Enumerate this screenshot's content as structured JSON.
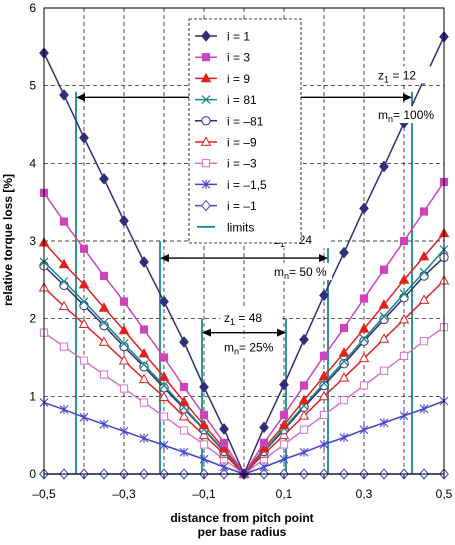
{
  "chart_data": {
    "type": "line",
    "ylabel": "relative torque loss [%]",
    "xlabel_line1": "distance from pitch point",
    "xlabel_line2": "per base radius",
    "xlim": [
      -0.5,
      0.5
    ],
    "ylim": [
      0,
      6
    ],
    "grid": true,
    "legend_position": "top-center",
    "x_ticks": [
      -0.5,
      -0.4,
      -0.3,
      -0.2,
      -0.1,
      0,
      0.1,
      0.2,
      0.3,
      0.4,
      0.5
    ],
    "x_tick_labels": [
      "–0,5",
      "",
      "–0,3",
      "",
      "–0,1",
      "",
      "0,1",
      "",
      "0,3",
      "",
      "0,5"
    ],
    "y_ticks": [
      0,
      1,
      2,
      3,
      4,
      5,
      6
    ],
    "y_tick_labels": [
      "0",
      "1",
      "2",
      "3",
      "4",
      "5",
      "6"
    ],
    "colors": {
      "navy": "#2e2e7a",
      "magenta": "#cc44bb",
      "red": "#e32020",
      "teal": "#1a8a86",
      "lightmagenta": "#d873cc",
      "blue": "#4444cc",
      "axis": "#000000",
      "grid": "#000000"
    },
    "series": [
      {
        "name": "i = 1",
        "color": "#2e2e7a",
        "marker": "diamond-filled",
        "x": [
          -0.5,
          -0.45,
          -0.4,
          -0.35,
          -0.3,
          -0.25,
          -0.2,
          -0.15,
          -0.1,
          -0.05,
          0,
          0.05,
          0.1,
          0.15,
          0.2,
          0.25,
          0.3,
          0.35,
          0.4,
          0.45,
          0.5
        ],
        "y": [
          5.42,
          4.88,
          4.33,
          3.8,
          3.26,
          2.73,
          2.22,
          1.7,
          1.12,
          0.58,
          0,
          0.6,
          1.15,
          1.73,
          2.3,
          2.85,
          3.42,
          3.96,
          4.52,
          5.08,
          5.63
        ]
      },
      {
        "name": "i = 3",
        "color": "#cc44bb",
        "marker": "square-filled",
        "x": [
          -0.5,
          -0.45,
          -0.4,
          -0.35,
          -0.3,
          -0.25,
          -0.2,
          -0.15,
          -0.1,
          -0.05,
          0,
          0.05,
          0.1,
          0.15,
          0.2,
          0.25,
          0.3,
          0.35,
          0.4,
          0.45,
          0.5
        ],
        "y": [
          3.62,
          3.25,
          2.9,
          2.55,
          2.22,
          1.86,
          1.5,
          1.12,
          0.76,
          0.4,
          0,
          0.4,
          0.76,
          1.14,
          1.52,
          1.88,
          2.26,
          2.63,
          3.0,
          3.38,
          3.76
        ]
      },
      {
        "name": "i = 9",
        "color": "#e32020",
        "marker": "triangle-filled",
        "x": [
          -0.5,
          -0.45,
          -0.4,
          -0.35,
          -0.3,
          -0.25,
          -0.2,
          -0.15,
          -0.1,
          -0.05,
          0,
          0.05,
          0.1,
          0.15,
          0.2,
          0.25,
          0.3,
          0.35,
          0.4,
          0.45,
          0.5
        ],
        "y": [
          2.98,
          2.7,
          2.44,
          2.14,
          1.85,
          1.55,
          1.25,
          0.93,
          0.63,
          0.33,
          0,
          0.33,
          0.63,
          0.95,
          1.26,
          1.56,
          1.87,
          2.18,
          2.5,
          2.8,
          3.1
        ]
      },
      {
        "name": "i = 81",
        "color": "#1a8a86",
        "marker": "x",
        "x": [
          -0.5,
          -0.45,
          -0.4,
          -0.35,
          -0.3,
          -0.25,
          -0.2,
          -0.15,
          -0.1,
          -0.05,
          0,
          0.05,
          0.1,
          0.15,
          0.2,
          0.25,
          0.3,
          0.35,
          0.4,
          0.45,
          0.5
        ],
        "y": [
          2.73,
          2.48,
          2.22,
          1.95,
          1.68,
          1.41,
          1.14,
          0.86,
          0.58,
          0.3,
          0,
          0.3,
          0.59,
          0.88,
          1.17,
          1.45,
          1.74,
          2.03,
          2.32,
          2.6,
          2.89
        ]
      },
      {
        "name": "i = –81",
        "color": "#2e2e7a",
        "marker": "circle-open",
        "x": [
          -0.5,
          -0.45,
          -0.4,
          -0.35,
          -0.3,
          -0.25,
          -0.2,
          -0.15,
          -0.1,
          -0.05,
          0,
          0.05,
          0.1,
          0.15,
          0.2,
          0.25,
          0.3,
          0.35,
          0.4,
          0.45,
          0.5
        ],
        "y": [
          2.68,
          2.43,
          2.17,
          1.91,
          1.64,
          1.38,
          1.11,
          0.84,
          0.57,
          0.29,
          0,
          0.29,
          0.57,
          0.86,
          1.14,
          1.42,
          1.71,
          1.99,
          2.27,
          2.55,
          2.79
        ]
      },
      {
        "name": "i = –9",
        "color": "#e32020",
        "marker": "triangle-open",
        "x": [
          -0.5,
          -0.45,
          -0.4,
          -0.35,
          -0.3,
          -0.25,
          -0.2,
          -0.15,
          -0.1,
          -0.05,
          0,
          0.05,
          0.1,
          0.15,
          0.2,
          0.25,
          0.3,
          0.35,
          0.4,
          0.45,
          0.5
        ],
        "y": [
          2.4,
          2.16,
          1.93,
          1.7,
          1.46,
          1.22,
          0.99,
          0.74,
          0.5,
          0.26,
          0,
          0.26,
          0.5,
          0.75,
          1.0,
          1.24,
          1.49,
          1.74,
          1.99,
          2.24,
          2.49
        ]
      },
      {
        "name": "i = –3",
        "color": "#d873cc",
        "marker": "square-open",
        "x": [
          -0.5,
          -0.45,
          -0.4,
          -0.35,
          -0.3,
          -0.25,
          -0.2,
          -0.15,
          -0.1,
          -0.05,
          0,
          0.05,
          0.1,
          0.15,
          0.2,
          0.25,
          0.3,
          0.35,
          0.4,
          0.45,
          0.5
        ],
        "y": [
          1.82,
          1.64,
          1.46,
          1.28,
          1.1,
          0.92,
          0.74,
          0.56,
          0.38,
          0.19,
          0,
          0.19,
          0.38,
          0.57,
          0.76,
          0.95,
          1.14,
          1.33,
          1.52,
          1.71,
          1.89
        ]
      },
      {
        "name": "i = –1,5",
        "color": "#4444cc",
        "marker": "star",
        "x": [
          -0.5,
          -0.45,
          -0.4,
          -0.35,
          -0.3,
          -0.25,
          -0.2,
          -0.15,
          -0.1,
          -0.05,
          0,
          0.05,
          0.1,
          0.15,
          0.2,
          0.25,
          0.3,
          0.35,
          0.4,
          0.45,
          0.5
        ],
        "y": [
          0.92,
          0.83,
          0.73,
          0.64,
          0.55,
          0.46,
          0.37,
          0.28,
          0.19,
          0.09,
          0,
          0.09,
          0.19,
          0.28,
          0.38,
          0.47,
          0.57,
          0.66,
          0.75,
          0.84,
          0.94
        ]
      },
      {
        "name": "i = –1",
        "color": "#4444cc",
        "marker": "diamond-open",
        "x": [
          -0.5,
          -0.45,
          -0.4,
          -0.35,
          -0.3,
          -0.25,
          -0.2,
          -0.15,
          -0.1,
          -0.05,
          0,
          0.05,
          0.1,
          0.15,
          0.2,
          0.25,
          0.3,
          0.35,
          0.4,
          0.45,
          0.5
        ],
        "y": [
          0,
          0,
          0,
          0,
          0,
          0,
          0,
          0,
          0,
          0,
          0,
          0,
          0,
          0,
          0,
          0,
          0,
          0,
          0,
          0,
          0
        ]
      }
    ],
    "limits": {
      "name": "limits",
      "color": "#1a8a86",
      "lines": [
        {
          "x": -0.42,
          "y_top": 4.92
        },
        {
          "x": 0.42,
          "y_top": 4.92
        },
        {
          "x": -0.21,
          "y_top": 3.0
        },
        {
          "x": 0.21,
          "y_top": 3.0
        },
        {
          "x": -0.105,
          "y_top": 2.0
        },
        {
          "x": 0.105,
          "y_top": 2.0
        }
      ]
    },
    "annotations": [
      {
        "z_text": "z",
        "z_sub": "1",
        "z_rest": " = 12",
        "m_text": "m",
        "m_sub": "n",
        "m_rest": "= 100%",
        "arrow_x": [
          -0.42,
          0.42
        ],
        "arrow_y": 4.85,
        "text_x": 0.335,
        "z_y": 5.08,
        "m_y": 4.57
      },
      {
        "z_text": "z",
        "z_sub": "1",
        "z_rest": " = 24",
        "m_text": "m",
        "m_sub": "n",
        "m_rest": "= 50 %",
        "arrow_x": [
          -0.21,
          0.21
        ],
        "arrow_y": 2.78,
        "text_x": 0.075,
        "z_y": 2.96,
        "m_y": 2.55
      },
      {
        "z_text": "z",
        "z_sub": "1",
        "z_rest": " = 48",
        "m_text": "m",
        "m_sub": "n",
        "m_rest": "= 25%",
        "arrow_x": [
          -0.105,
          0.105
        ],
        "arrow_y": 1.82,
        "text_x": -0.05,
        "z_y": 1.96,
        "m_y": 1.58
      }
    ]
  }
}
